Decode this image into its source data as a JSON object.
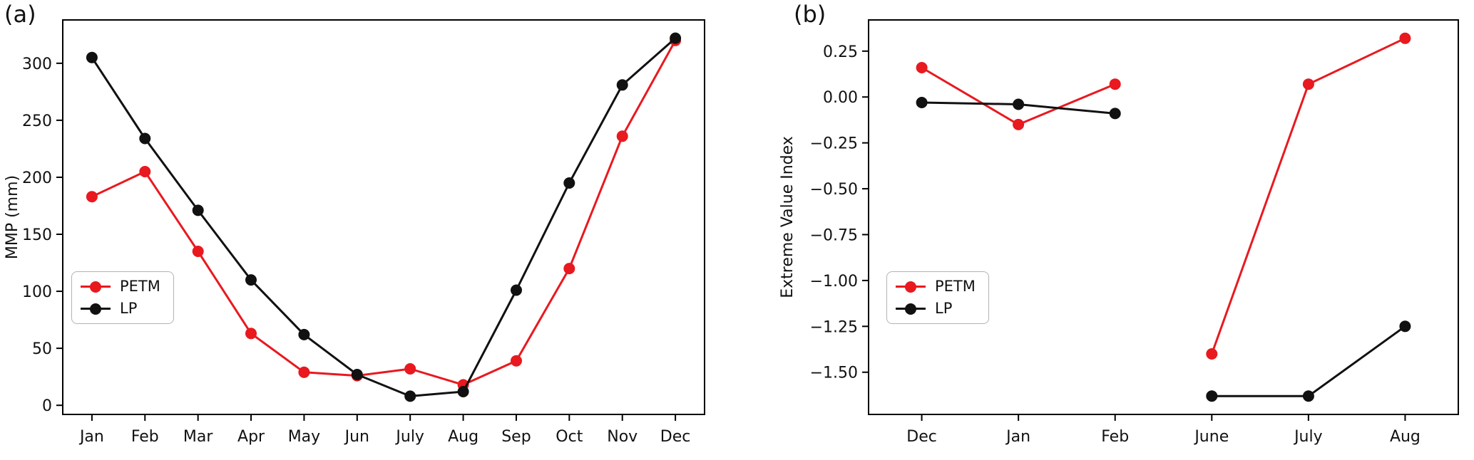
{
  "chart_data": [
    {
      "type": "line",
      "panel_label": "(a)",
      "title": "",
      "xlabel": "",
      "ylabel": "MMP (mm)",
      "categories": [
        "Jan",
        "Feb",
        "Mar",
        "Apr",
        "May",
        "Jun",
        "July",
        "Aug",
        "Sep",
        "Oct",
        "Nov",
        "Dec"
      ],
      "series": [
        {
          "name": "PETM",
          "color": "#e8191f",
          "values": [
            183,
            205,
            135,
            63,
            29,
            26,
            32,
            18,
            39,
            120,
            236,
            320
          ],
          "segments": [
            [
              0,
              11
            ]
          ]
        },
        {
          "name": "LP",
          "color": "#111111",
          "values": [
            305,
            234,
            171,
            110,
            62,
            27,
            8,
            12,
            101,
            195,
            281,
            322
          ],
          "segments": [
            [
              0,
              11
            ]
          ]
        }
      ],
      "ylim": [
        -8,
        338
      ],
      "ytick_values": [
        0,
        50,
        100,
        150,
        200,
        250,
        300
      ],
      "ytick_labels": [
        "0",
        "50",
        "100",
        "150",
        "200",
        "250",
        "300"
      ],
      "grid": false,
      "legend_position": "lower left"
    },
    {
      "type": "line",
      "panel_label": "(b)",
      "title": "",
      "xlabel": "",
      "ylabel": "Extreme Value Index",
      "categories": [
        "Dec",
        "Jan",
        "Feb",
        "June",
        "July",
        "Aug"
      ],
      "series": [
        {
          "name": "PETM",
          "color": "#e8191f",
          "values": [
            0.16,
            -0.15,
            0.07,
            -1.4,
            0.07,
            0.32
          ],
          "segments": [
            [
              0,
              2
            ],
            [
              3,
              5
            ]
          ]
        },
        {
          "name": "LP",
          "color": "#111111",
          "values": [
            -0.03,
            -0.04,
            -0.09,
            -1.63,
            -1.63,
            -1.25
          ],
          "segments": [
            [
              0,
              2
            ],
            [
              3,
              5
            ]
          ]
        }
      ],
      "ylim": [
        -1.73,
        0.42
      ],
      "ytick_values": [
        0.25,
        0.0,
        -0.25,
        -0.5,
        -0.75,
        -1.0,
        -1.25,
        -1.5
      ],
      "ytick_labels": [
        "0.25",
        "0.00",
        "−0.25",
        "−0.50",
        "−0.75",
        "−1.00",
        "−1.25",
        "−1.50"
      ],
      "grid": false,
      "legend_position": "lower left"
    }
  ]
}
